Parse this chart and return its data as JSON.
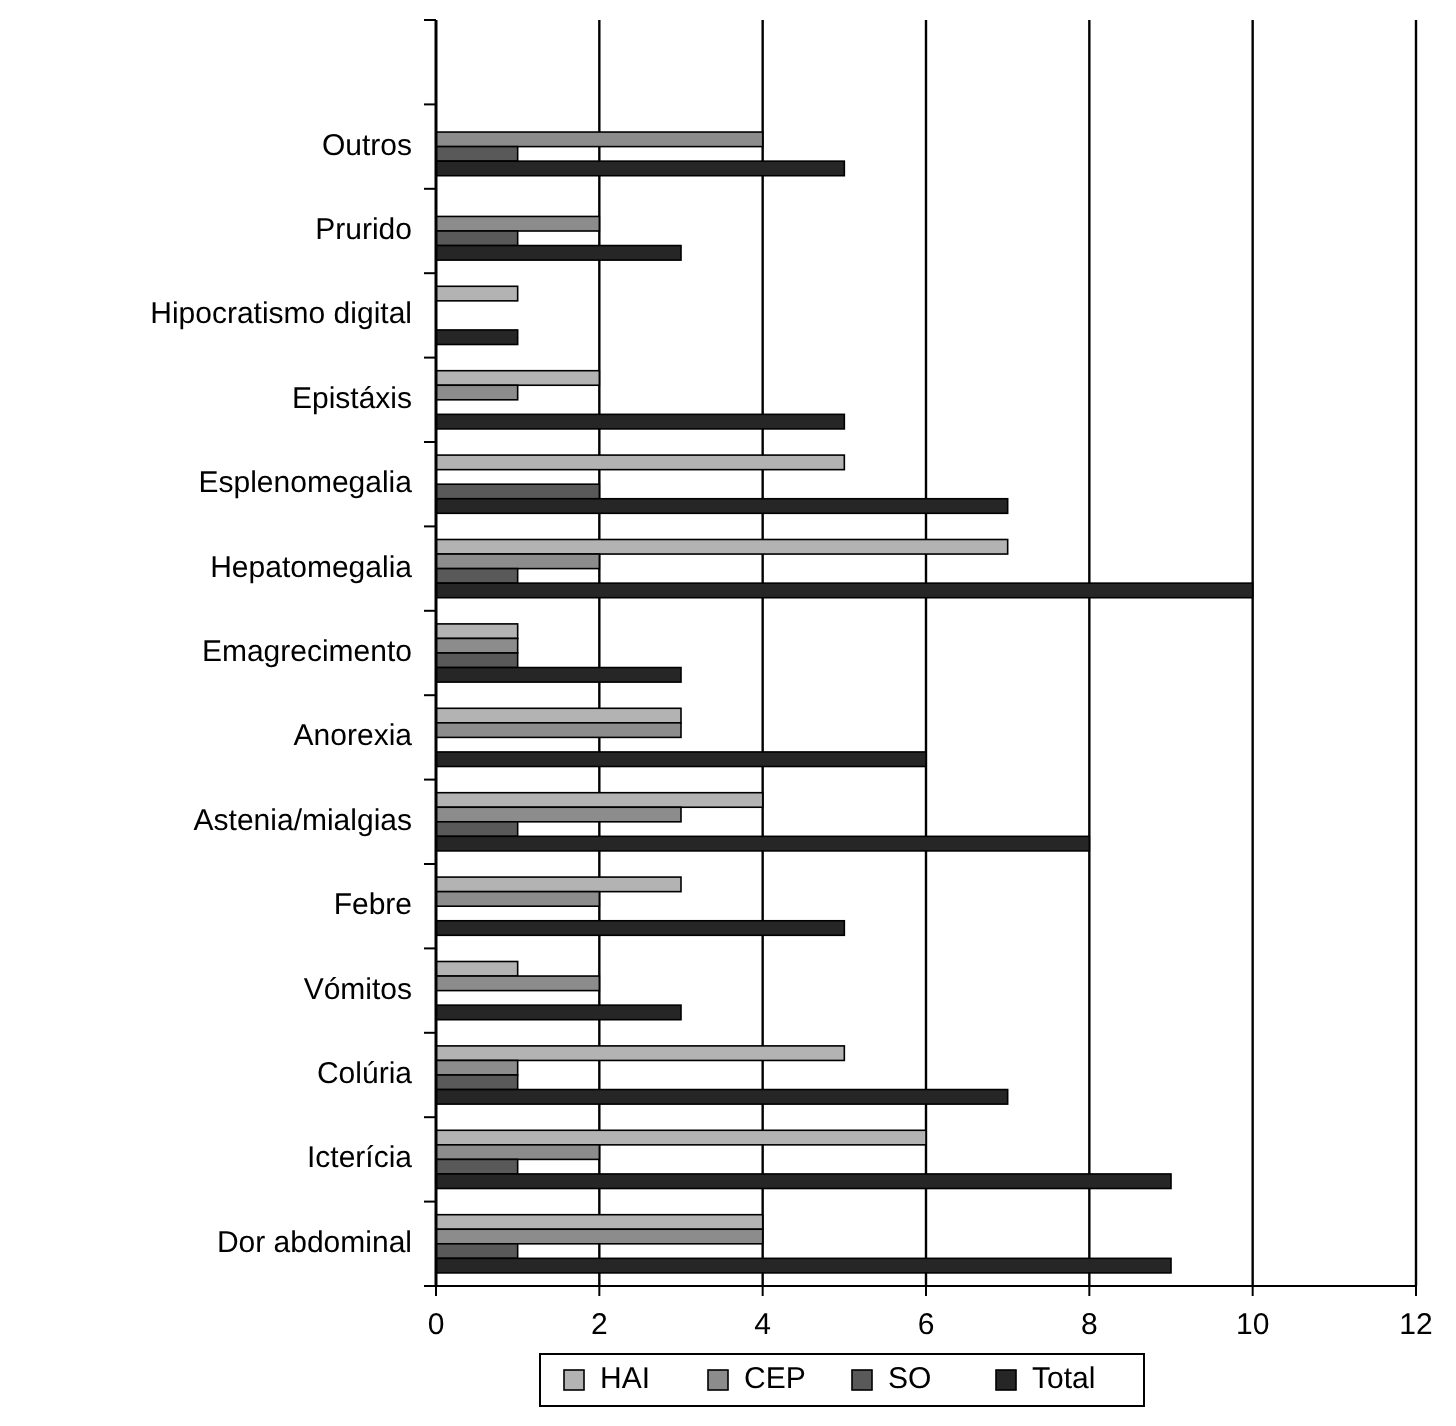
{
  "chart_data": {
    "type": "bar",
    "orientation": "horizontal",
    "categories": [
      null,
      "Outros",
      "Prurido",
      "Hipocratismo digital",
      "Epistáxis",
      "Esplenomegalia",
      "Hepatomegalia",
      "Emagrecimento",
      "Anorexia",
      "Astenia/mialgias",
      "Febre",
      "Vómitos",
      "Colúria",
      "Icterícia",
      "Dor abdominal"
    ],
    "series": [
      {
        "name": "HAI",
        "color": "#b3b3b3",
        "values": [
          null,
          0,
          0,
          1,
          2,
          5,
          7,
          1,
          3,
          4,
          3,
          1,
          5,
          6,
          4
        ]
      },
      {
        "name": "CEP",
        "color": "#8c8c8c",
        "values": [
          null,
          4,
          2,
          0,
          1,
          0,
          2,
          1,
          3,
          3,
          2,
          2,
          1,
          2,
          4
        ]
      },
      {
        "name": "SO",
        "color": "#595959",
        "values": [
          null,
          1,
          1,
          0,
          0,
          2,
          1,
          1,
          0,
          1,
          0,
          0,
          1,
          1,
          1
        ]
      },
      {
        "name": "Total",
        "color": "#262626",
        "values": [
          null,
          5,
          3,
          1,
          5,
          7,
          10,
          3,
          6,
          8,
          5,
          3,
          7,
          9,
          9
        ]
      }
    ],
    "xlim": [
      0,
      12
    ],
    "xticks": [
      0,
      2,
      4,
      6,
      8,
      10,
      12
    ],
    "grid": "x",
    "legend": "bottom"
  }
}
